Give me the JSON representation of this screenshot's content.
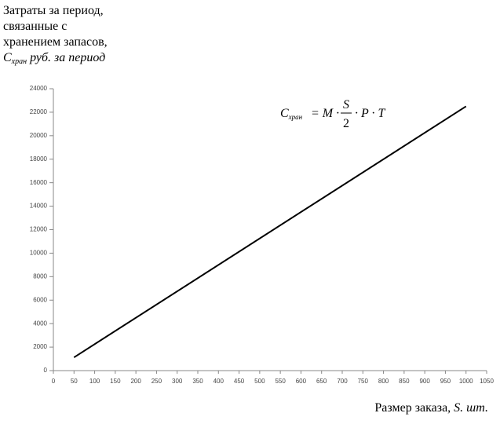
{
  "chart_data": {
    "type": "line",
    "y_label_lines": [
      "Затраты за период,",
      "связанные с",
      "хранением запасов,"
    ],
    "y_label_symbol": "C",
    "y_label_subscript": "хран",
    "y_label_unit": "руб. за период",
    "formula": {
      "lhs": "C",
      "lhs_subscript": "хран",
      "middle": "= M ·",
      "numerator": "S",
      "denominator": "2",
      "rhs": "· P · T"
    },
    "x_label": "Размер заказа,",
    "x_label_symbol": "S.",
    "x_label_unit": "шт.",
    "x": [
      50,
      1000
    ],
    "values": [
      1125,
      22500
    ],
    "color": "#000000",
    "xlim": [
      0,
      1050
    ],
    "xticks": [
      0,
      50,
      100,
      150,
      200,
      250,
      300,
      350,
      400,
      450,
      500,
      550,
      600,
      650,
      700,
      750,
      800,
      850,
      900,
      950,
      1000,
      1050
    ],
    "ylim": [
      0,
      24000
    ],
    "yticks": [
      0,
      2000,
      4000,
      6000,
      8000,
      10000,
      12000,
      14000,
      16000,
      18000,
      20000,
      22000,
      24000
    ],
    "grid": false
  }
}
